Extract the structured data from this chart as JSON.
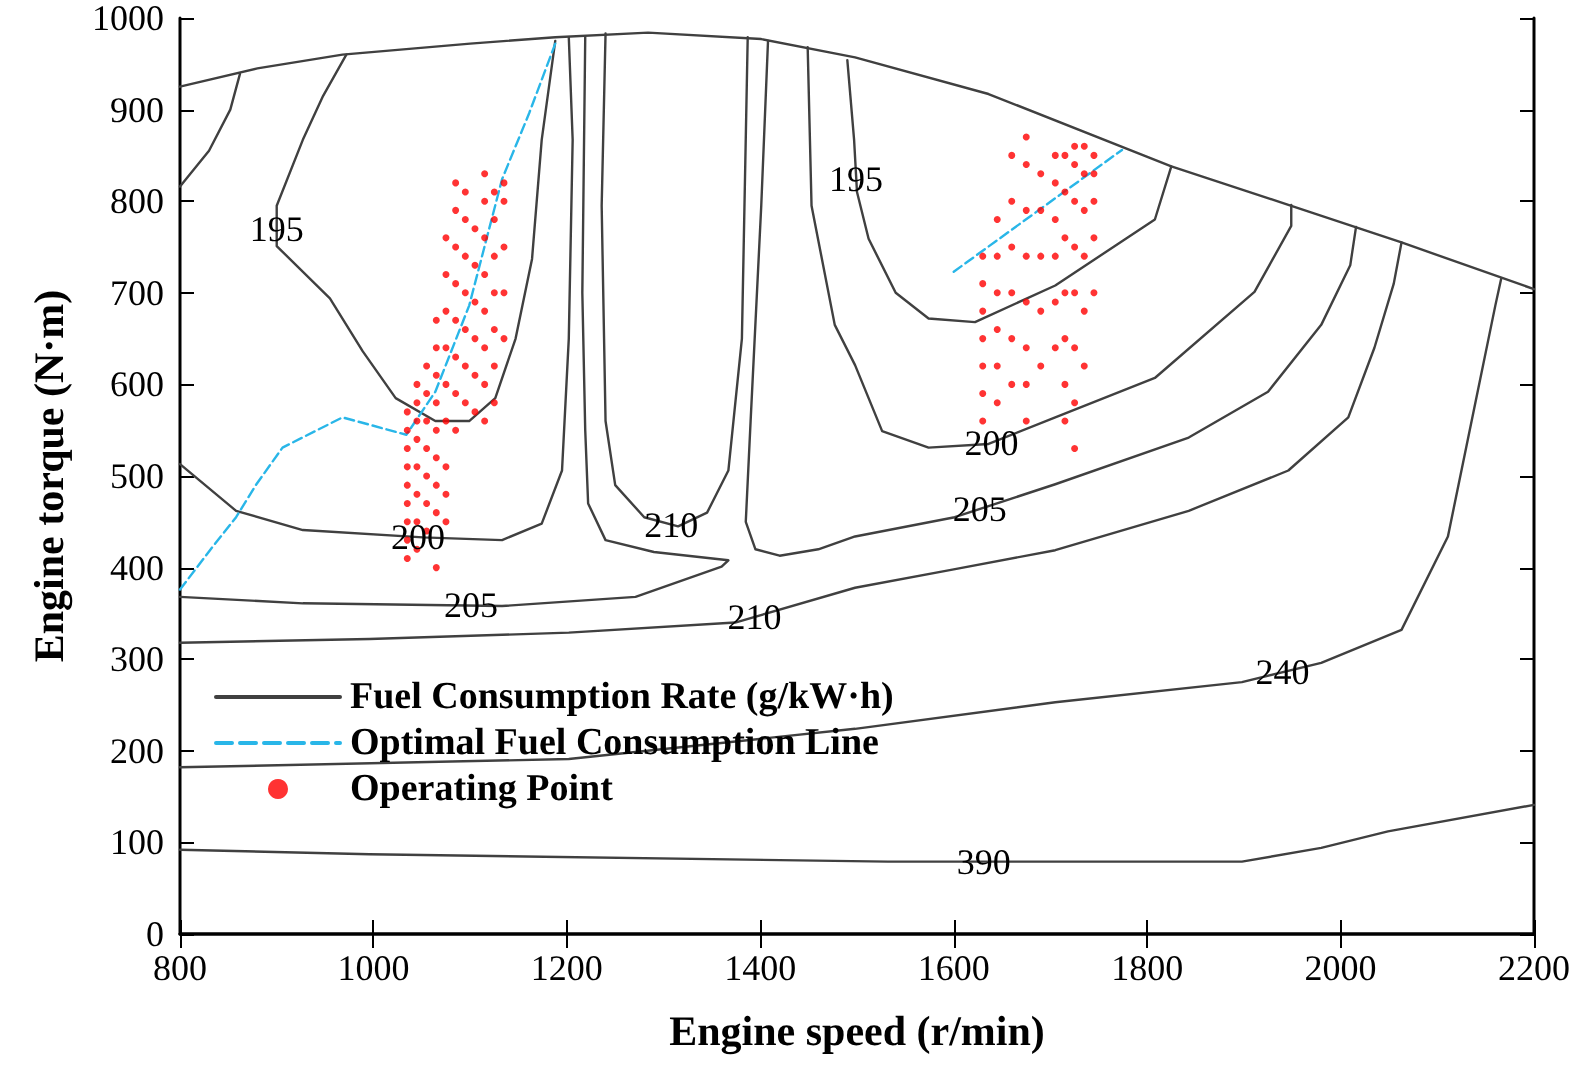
{
  "chart_data": {
    "type": "line",
    "xlabel": "Engine speed (r/min)",
    "ylabel": "Engine torque (N·m)",
    "xlim": [
      800,
      2200
    ],
    "xticks": [
      800,
      1000,
      1200,
      1400,
      1600,
      1800,
      2000,
      2200
    ],
    "ylim": [
      0,
      1000
    ],
    "yticks": [
      0,
      100,
      200,
      300,
      400,
      500,
      600,
      700,
      800,
      900,
      1000
    ],
    "grid": false,
    "legend": "bottom left",
    "series": [
      {
        "name": "Fuel Consumption Rate (g/kW·h)",
        "color": "#404040",
        "x": [
          800,
          996,
          1532,
          1705,
          1898,
          1980,
          2049,
          2200
        ],
        "values": [
          92,
          87,
          79,
          79,
          79,
          94,
          112,
          141
        ]
      },
      {
        "color": "#404040",
        "x": [
          800,
          880,
          968,
          1100,
          1188,
          1284,
          1401,
          1498,
          1636,
          1825,
          1946,
          2063,
          2200
        ],
        "values": [
          925,
          945,
          960,
          972,
          979,
          984,
          977,
          957,
          917,
          838,
          796,
          755,
          704
        ]
      },
      {
        "color": "#404040",
        "x": [
          800,
          830,
          852,
          862
        ],
        "values": [
          816,
          855,
          900,
          939
        ]
      },
      {
        "color": "#404040",
        "x": [
          972,
          948,
          927,
          900,
          900,
          955,
          989,
          1023,
          1064,
          1099,
          1126,
          1147,
          1164,
          1174,
          1188
        ],
        "values": [
          960,
          915,
          867,
          795,
          751,
          694,
          636,
          585,
          560,
          560,
          585,
          650,
          737,
          867,
          975
        ]
      },
      {
        "color": "#404040",
        "x": [
          800,
          858,
          927,
          1051,
          1133,
          1174,
          1195,
          1202,
          1206,
          1202
        ],
        "values": [
          513,
          462,
          441,
          433,
          430,
          448,
          506,
          650,
          867,
          979
        ]
      },
      {
        "color": "#404040",
        "x": [
          800,
          927,
          1133,
          1271,
          1360,
          1367,
          1290,
          1240,
          1222,
          1219,
          1216,
          1219
        ],
        "values": [
          368,
          361,
          358,
          368,
          401,
          408,
          417,
          430,
          470,
          550,
          700,
          979
        ]
      },
      {
        "color": "#404040",
        "x": [
          1240,
          1236,
          1240,
          1250,
          1280,
          1315,
          1345,
          1367,
          1381,
          1387
        ],
        "values": [
          983,
          795,
          560,
          490,
          455,
          445,
          460,
          506,
          650,
          979
        ]
      },
      {
        "color": "#404040",
        "x": [
          1408,
          1401,
          1390,
          1385,
          1395,
          1420,
          1460,
          1498,
          1601,
          1705,
          1843,
          1925,
          1980,
          2010,
          2016
        ],
        "values": [
          975,
          795,
          560,
          450,
          420,
          413,
          420,
          434,
          455,
          491,
          542,
          592,
          665,
          730,
          772
        ]
      },
      {
        "color": "#404040",
        "x": [
          1490,
          1497,
          1500,
          1512,
          1540,
          1574,
          1622,
          1705,
          1808,
          1825
        ],
        "values": [
          954,
          867,
          810,
          759,
          700,
          672,
          668,
          708,
          780,
          838
        ]
      },
      {
        "color": "#404040",
        "x": [
          1449,
          1453,
          1477,
          1498,
          1526,
          1574,
          1636,
          1705,
          1808,
          1911,
          1949,
          1949
        ],
        "values": [
          968,
          795,
          665,
          621,
          549,
          531,
          535,
          564,
          607,
          701,
          773,
          796
        ]
      },
      {
        "color": "#404040",
        "x": [
          800,
          996,
          1202,
          1374,
          1498,
          1600,
          1705,
          1843,
          1946,
          2008,
          2035,
          2055,
          2063
        ],
        "values": [
          318,
          322,
          329,
          340,
          378,
          398,
          419,
          462,
          506,
          564,
          640,
          710,
          755
        ]
      },
      {
        "color": "#404040",
        "x": [
          800,
          1202,
          1498,
          1705,
          1898,
          1980,
          2063,
          2111,
          2139,
          2160,
          2166
        ],
        "values": [
          182,
          191,
          224,
          253,
          275,
          296,
          332,
          434,
          578,
          686,
          715
        ]
      },
      {
        "name": "Optimal Fuel Consumption Line",
        "color": "#29b6e8",
        "line_style": "dashed",
        "x": [
          800,
          831,
          858,
          879,
          906,
          968,
          996,
          1034,
          1064,
          1099,
          1133,
          1161,
          1188
        ],
        "values": [
          376,
          419,
          455,
          491,
          531,
          564,
          556,
          545,
          592,
          686,
          824,
          896,
          972
        ]
      },
      {
        "color": "#29b6e8",
        "line_style": "dashed",
        "x": [
          1600,
          1774
        ],
        "values": [
          723,
          856
        ]
      },
      {
        "name": "Operating Point",
        "type": "scatter",
        "color": "#ff0000",
        "marker": "circle",
        "x": [
          1035,
          1035,
          1035,
          1035,
          1035,
          1035,
          1035,
          1035,
          1035,
          1045,
          1045,
          1045,
          1045,
          1045,
          1045,
          1045,
          1045,
          1055,
          1055,
          1055,
          1055,
          1055,
          1055,
          1055,
          1065,
          1065,
          1065,
          1065,
          1065,
          1065,
          1065,
          1065,
          1065,
          1075,
          1075,
          1075,
          1075,
          1075,
          1075,
          1075,
          1075,
          1075,
          1085,
          1085,
          1085,
          1085,
          1085,
          1085,
          1085,
          1085,
          1095,
          1095,
          1095,
          1095,
          1095,
          1095,
          1095,
          1105,
          1105,
          1105,
          1105,
          1105,
          1105,
          1115,
          1115,
          1115,
          1115,
          1115,
          1115,
          1115,
          1115,
          1125,
          1125,
          1125,
          1125,
          1125,
          1125,
          1125,
          1135,
          1135,
          1135,
          1135,
          1135,
          1630,
          1630,
          1630,
          1630,
          1630,
          1630,
          1630,
          1645,
          1645,
          1645,
          1645,
          1645,
          1645,
          1660,
          1660,
          1660,
          1660,
          1660,
          1660,
          1675,
          1675,
          1675,
          1675,
          1675,
          1675,
          1675,
          1675,
          1690,
          1690,
          1690,
          1690,
          1690,
          1705,
          1705,
          1705,
          1705,
          1705,
          1705,
          1715,
          1715,
          1715,
          1715,
          1715,
          1715,
          1715,
          1725,
          1725,
          1725,
          1725,
          1725,
          1725,
          1725,
          1725,
          1735,
          1735,
          1735,
          1735,
          1735,
          1735,
          1745,
          1745,
          1745,
          1745,
          1745
        ],
        "values": [
          410,
          430,
          450,
          470,
          490,
          510,
          530,
          550,
          570,
          420,
          450,
          480,
          510,
          540,
          560,
          580,
          600,
          440,
          470,
          500,
          530,
          560,
          590,
          620,
          400,
          460,
          490,
          520,
          550,
          580,
          610,
          640,
          670,
          450,
          480,
          510,
          560,
          600,
          640,
          680,
          720,
          760,
          550,
          590,
          630,
          670,
          710,
          750,
          790,
          820,
          580,
          620,
          660,
          700,
          740,
          780,
          810,
          570,
          610,
          650,
          690,
          730,
          770,
          560,
          600,
          640,
          680,
          720,
          760,
          800,
          830,
          580,
          620,
          660,
          700,
          740,
          780,
          810,
          650,
          700,
          750,
          800,
          820,
          560,
          590,
          620,
          650,
          680,
          710,
          740,
          580,
          620,
          660,
          700,
          740,
          780,
          600,
          650,
          700,
          750,
          800,
          850,
          560,
          600,
          640,
          690,
          740,
          790,
          840,
          870,
          620,
          680,
          740,
          790,
          830,
          640,
          690,
          740,
          780,
          820,
          850,
          560,
          600,
          650,
          700,
          760,
          810,
          850,
          530,
          580,
          640,
          700,
          750,
          800,
          840,
          860,
          620,
          680,
          740,
          790,
          830,
          860,
          700,
          760,
          800,
          830,
          850
        ]
      }
    ],
    "annotations": [
      {
        "text": "195",
        "x": 900,
        "y": 770
      },
      {
        "text": "195",
        "x": 1499,
        "y": 824
      },
      {
        "text": "200",
        "x": 1046,
        "y": 433
      },
      {
        "text": "205",
        "x": 1101,
        "y": 359
      },
      {
        "text": "210",
        "x": 1308,
        "y": 447
      },
      {
        "text": "210",
        "x": 1394,
        "y": 346
      },
      {
        "text": "200",
        "x": 1639,
        "y": 536
      },
      {
        "text": "205",
        "x": 1627,
        "y": 464
      },
      {
        "text": "240",
        "x": 1940,
        "y": 286
      },
      {
        "text": "390",
        "x": 1631,
        "y": 79
      }
    ]
  }
}
